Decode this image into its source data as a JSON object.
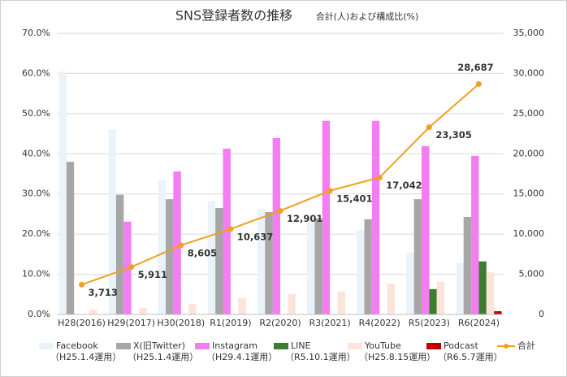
{
  "chart_data": {
    "type": "bar_line",
    "title": "SNS登録者数の推移",
    "subtitle": "合計(人)および構成比(%)",
    "categories": [
      "H28(2016)",
      "H29(2017)",
      "H30(2018)",
      "R1(2019)",
      "R2(2020)",
      "R3(2021)",
      "R4(2022)",
      "R5(2023)",
      "R6(2024)"
    ],
    "series": [
      {
        "name": "Facebook",
        "note": "（H25.1.4運用）",
        "color": "#eaf3fa",
        "type": "bar",
        "values": [
          60.5,
          46.0,
          33.4,
          28.3,
          26.3,
          23.7,
          21.1,
          15.4,
          12.8
        ]
      },
      {
        "name": "X(旧Twitter)",
        "note": "（H25.1.4運用）",
        "color": "#a6a6a6",
        "type": "bar",
        "values": [
          38.0,
          29.8,
          28.7,
          26.5,
          25.5,
          23.9,
          23.7,
          28.7,
          24.3
        ]
      },
      {
        "name": "Instagram",
        "note": "（H29.4.1運用）",
        "color": "#f27ef2",
        "type": "bar",
        "values": [
          null,
          23.1,
          35.6,
          41.3,
          43.9,
          48.2,
          48.2,
          41.9,
          39.5
        ]
      },
      {
        "name": "LINE",
        "note": "（R5.10.1運用）",
        "color": "#3c7d2e",
        "type": "bar",
        "values": [
          null,
          null,
          null,
          null,
          null,
          null,
          null,
          6.3,
          13.2
        ]
      },
      {
        "name": "YouTube",
        "note": "（H25.8.15運用）",
        "color": "#fde4da",
        "type": "bar",
        "values": [
          1.2,
          1.6,
          2.6,
          4.0,
          5.1,
          5.7,
          7.7,
          8.1,
          10.5
        ]
      },
      {
        "name": "Podcast",
        "note": "（R6.5.7運用）",
        "color": "#c00000",
        "type": "bar",
        "values": [
          null,
          null,
          null,
          null,
          null,
          null,
          null,
          null,
          0.8
        ]
      },
      {
        "name": "合計",
        "color": "#f0a020",
        "type": "line",
        "axis": "y2",
        "values": [
          3713,
          5911,
          8605,
          10637,
          12901,
          15401,
          17042,
          23305,
          28687
        ],
        "value_labels": [
          "3,713",
          "5,911",
          "8,605",
          "10,637",
          "12,901",
          "15,401",
          "17,042",
          "23,305",
          "28,687"
        ]
      }
    ],
    "ylim": [
      0,
      70
    ],
    "yticks": [
      {
        "value": 0,
        "label": "0.0%"
      },
      {
        "value": 10,
        "label": "10.0%"
      },
      {
        "value": 20,
        "label": "20.0%"
      },
      {
        "value": 30,
        "label": "30.0%"
      },
      {
        "value": 40,
        "label": "40.0%"
      },
      {
        "value": 50,
        "label": "50.0%"
      },
      {
        "value": 60,
        "label": "60.0%"
      },
      {
        "value": 70,
        "label": "70.0%"
      }
    ],
    "y2lim": [
      0,
      35000
    ],
    "y2ticks": [
      0,
      {
        "value": 5000,
        "label": "5,000"
      },
      {
        "value": 10000,
        "label": "10,000"
      },
      {
        "value": 15000,
        "label": "15,000"
      },
      {
        "value": 20000,
        "label": "20,000"
      },
      {
        "value": 25000,
        "label": "25,000"
      },
      {
        "value": 30000,
        "label": "30,000"
      },
      {
        "value": 35000,
        "label": "35,000"
      }
    ],
    "grid": true,
    "legend": "bottom"
  }
}
